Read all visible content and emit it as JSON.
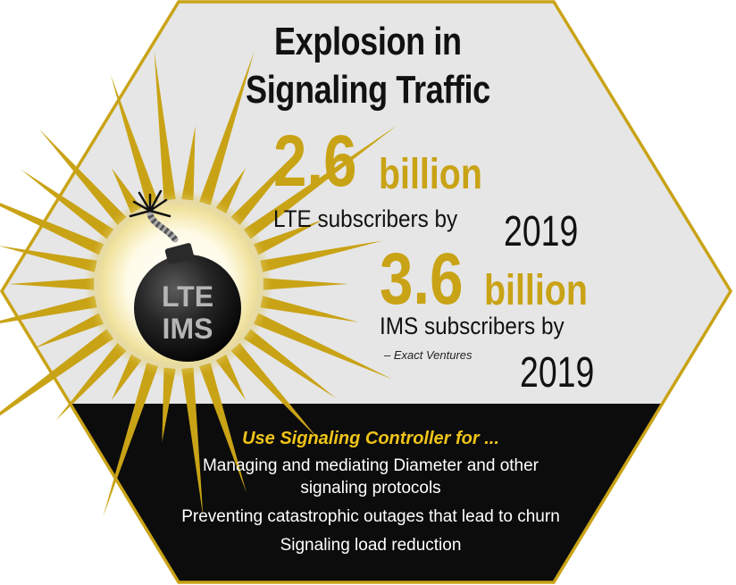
{
  "title_line1": "Explosion in",
  "title_line2": "Signaling Traffic",
  "stats": [
    {
      "number": "2.6",
      "unit": "billion",
      "label": "LTE subscribers by",
      "year": "2019"
    },
    {
      "number": "3.6",
      "unit": "billion",
      "label": "IMS subscribers by",
      "year": "2019"
    }
  ],
  "credit": "– Exact Ventures",
  "bomb": {
    "line1": "LTE",
    "line2": "IMS"
  },
  "bullets": {
    "heading": "Use Signaling Controller for ...",
    "items": [
      "Managing and mediating Diameter and other signaling protocols",
      "Preventing catastrophic outages that lead to churn",
      "Signaling load reduction"
    ]
  },
  "colors": {
    "gold": "#c9a316",
    "panel": "#e6e6e6",
    "dark": "#0c0c0c",
    "heading_yellow": "#f0c419"
  }
}
